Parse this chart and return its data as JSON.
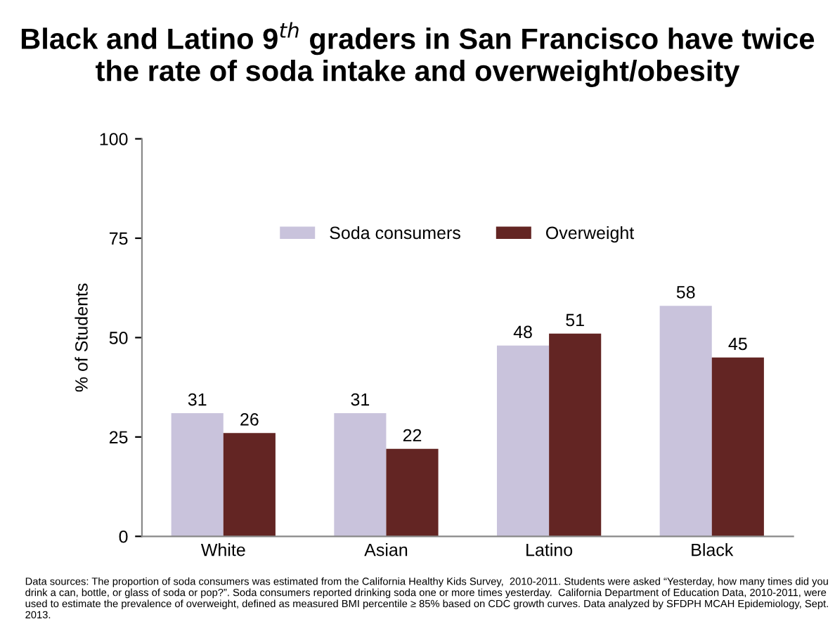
{
  "chart_data": {
    "type": "bar",
    "title": "Black and Latino 9$^{th}$ graders in San Francisco have twice the rate of soda intake and overweight/obesity",
    "ylabel": "% of Students",
    "categories": [
      "White",
      "Asian",
      "Latino",
      "Black"
    ],
    "series": [
      {
        "name": "Soda consumers",
        "color": "#c9c3dc",
        "values": [
          31,
          31,
          48,
          58
        ]
      },
      {
        "name": "Overweight",
        "color": "#632523",
        "values": [
          26,
          22,
          51,
          45
        ]
      }
    ],
    "ylim": [
      0,
      100
    ],
    "yticks": [
      0,
      25,
      50,
      75,
      100
    ],
    "grid": false,
    "legend": "top right",
    "data_labels": true,
    "annotations": [
      "Data sources: The proportion of soda consumers was estimated from the California Healthy Kids Survey,  2010-2011. Students were asked “Yesterday, how many times did you drink a can, bottle, or glass of soda or pop?”. Soda consumers reported drinking soda one or more times yesterday.  California Department of Education Data, 2010-2011, were used to estimate the prevalence of overweight, defined as measured BMI percentile ≥ 85% based on CDC growth curves. Data analyzed by SFDPH MCAH Epidemiology, Sept. 2013."
    ]
  }
}
